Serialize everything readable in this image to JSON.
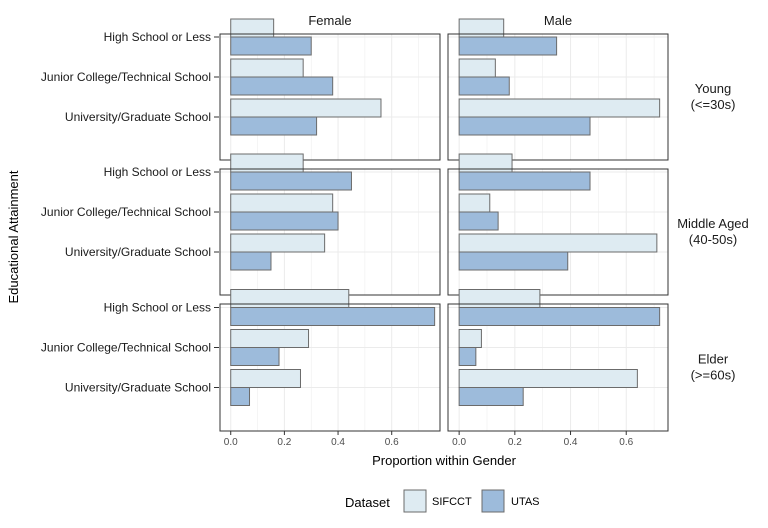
{
  "chart_data": {
    "type": "bar",
    "orientation": "horizontal",
    "facets": {
      "columns": [
        "Female",
        "Male"
      ],
      "rows": [
        {
          "key": "young",
          "label_lines": [
            "Young",
            "(<=30s)"
          ]
        },
        {
          "key": "middle",
          "label_lines": [
            "Middle Aged",
            "(40-50s)"
          ]
        },
        {
          "key": "elder",
          "label_lines": [
            "Elder",
            "(>=60s)"
          ]
        }
      ]
    },
    "categories": [
      "High School or Less",
      "Junior College/Technical School",
      "University/Graduate School"
    ],
    "series_names": [
      "SIFCCT",
      "UTAS"
    ],
    "colors": {
      "SIFCCT": "#deebf2",
      "UTAS": "#9dbbdb",
      "bar_border": "#6b6b6b",
      "panel_border": "#333333",
      "grid": "#ebebeb"
    },
    "panels": {
      "young": {
        "Female": {
          "SIFCCT": [
            0.16,
            0.27,
            0.56
          ],
          "UTAS": [
            0.3,
            0.38,
            0.32
          ]
        },
        "Male": {
          "SIFCCT": [
            0.16,
            0.13,
            0.72
          ],
          "UTAS": [
            0.35,
            0.18,
            0.47
          ]
        }
      },
      "middle": {
        "Female": {
          "SIFCCT": [
            0.27,
            0.38,
            0.35
          ],
          "UTAS": [
            0.45,
            0.4,
            0.15
          ]
        },
        "Male": {
          "SIFCCT": [
            0.19,
            0.11,
            0.71
          ],
          "UTAS": [
            0.47,
            0.14,
            0.39
          ]
        }
      },
      "elder": {
        "Female": {
          "SIFCCT": [
            0.44,
            0.29,
            0.26
          ],
          "UTAS": [
            0.76,
            0.18,
            0.07
          ]
        },
        "Male": {
          "SIFCCT": [
            0.29,
            0.08,
            0.64
          ],
          "UTAS": [
            0.72,
            0.06,
            0.23
          ]
        }
      }
    },
    "xlabel": "Proportion within Gender",
    "ylabel": "Educational Attainment",
    "xlim": {
      "Female": [
        -0.04,
        0.78
      ],
      "Male": [
        -0.04,
        0.75
      ]
    },
    "x_ticks": [
      0.0,
      0.2,
      0.4,
      0.6
    ],
    "x_tick_labels": [
      "0.0",
      "0.2",
      "0.4",
      "0.6"
    ],
    "grid": true,
    "legend": {
      "title": "Dataset",
      "position": "bottom",
      "items": [
        "SIFCCT",
        "UTAS"
      ]
    }
  }
}
